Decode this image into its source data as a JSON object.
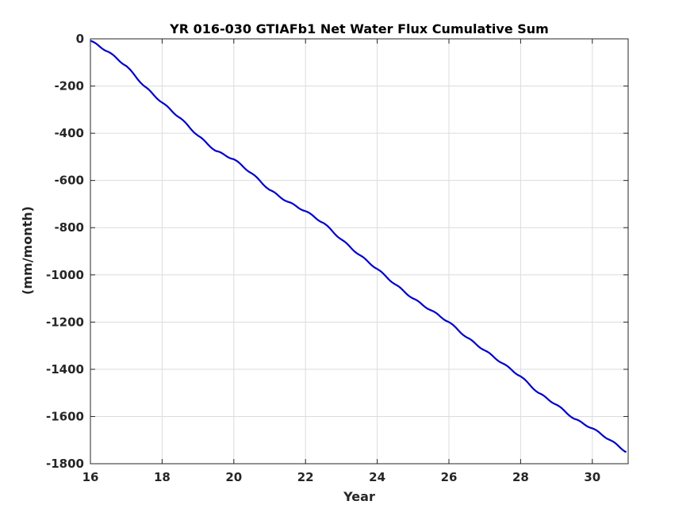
{
  "chart_data": {
    "type": "line",
    "title": "YR 016-030 GTIAFb1 Net Water Flux Cumulative Sum",
    "xlabel": "Year",
    "ylabel": "(mm/month)",
    "xlim": [
      16,
      31
    ],
    "ylim": [
      -1800,
      0
    ],
    "xticks": [
      16,
      18,
      20,
      22,
      24,
      26,
      28,
      30
    ],
    "yticks": [
      0,
      -200,
      -400,
      -600,
      -800,
      -1000,
      -1200,
      -1400,
      -1600,
      -1800
    ],
    "grid": true,
    "line_color": "#0000cd",
    "series": [
      {
        "x": [
          16.0,
          16.5,
          17.0,
          17.5,
          18.0,
          18.5,
          19.0,
          19.5,
          20.0,
          20.5,
          21.0,
          21.5,
          22.0,
          22.5,
          23.0,
          23.5,
          24.0,
          24.5,
          25.0,
          25.5,
          26.0,
          26.5,
          27.0,
          27.5,
          28.0,
          28.5,
          29.0,
          29.5,
          30.0,
          30.5,
          30.95
        ],
        "y": [
          -8,
          -55,
          -115,
          -200,
          -270,
          -335,
          -410,
          -475,
          -510,
          -570,
          -640,
          -690,
          -730,
          -780,
          -850,
          -915,
          -975,
          -1040,
          -1100,
          -1150,
          -1200,
          -1265,
          -1320,
          -1375,
          -1430,
          -1500,
          -1550,
          -1610,
          -1650,
          -1700,
          -1750
        ]
      }
    ]
  }
}
